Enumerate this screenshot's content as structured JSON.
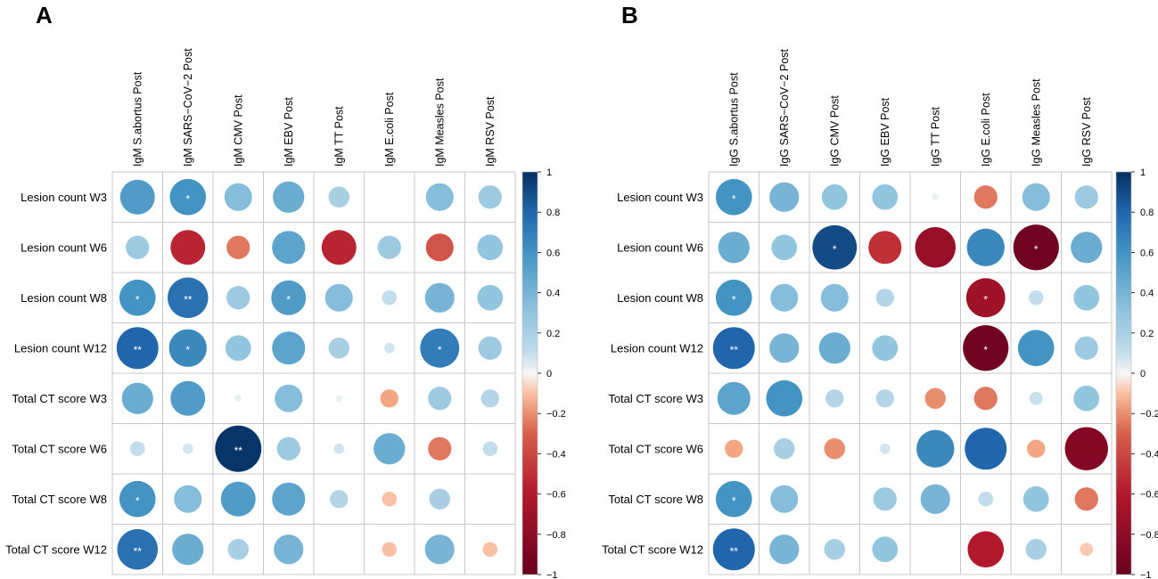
{
  "chart_data": [
    {
      "type": "heatmap",
      "panel_label": "A",
      "columns": [
        "IgM S.abortus Post",
        "IgM SARS−CoV−2 Post",
        "IgM CMV Post",
        "IgM EBV Post",
        "IgM TT Post",
        "IgM E.coli Post",
        "IgM Measles Post",
        "IgM RSV Post"
      ],
      "rows": [
        "Lesion count W3",
        "Lesion count W6",
        "Lesion count W8",
        "Lesion count W12",
        "Total CT score W3",
        "Total CT score W6",
        "Total CT score W8",
        "Total CT score W12"
      ],
      "values": [
        [
          0.55,
          0.6,
          0.35,
          0.45,
          0.2,
          0.0,
          0.35,
          0.25
        ],
        [
          0.25,
          -0.55,
          -0.25,
          0.5,
          -0.55,
          0.25,
          -0.35,
          0.3
        ],
        [
          0.6,
          0.75,
          0.25,
          0.55,
          0.35,
          0.1,
          0.4,
          0.3
        ],
        [
          0.8,
          0.65,
          0.3,
          0.5,
          0.2,
          0.05,
          0.7,
          0.25
        ],
        [
          0.45,
          0.55,
          0.02,
          0.35,
          0.02,
          -0.15,
          0.25,
          0.15
        ],
        [
          0.1,
          0.05,
          0.98,
          0.25,
          0.05,
          0.45,
          -0.25,
          0.1
        ],
        [
          0.6,
          0.35,
          0.55,
          0.5,
          0.15,
          -0.1,
          0.2,
          0.0
        ],
        [
          0.75,
          0.45,
          0.2,
          0.4,
          0.0,
          -0.1,
          0.4,
          -0.1
        ]
      ],
      "significance": [
        [
          "",
          "*",
          "",
          "",
          "",
          "",
          "",
          ""
        ],
        [
          "",
          "",
          "",
          "",
          "",
          "",
          "",
          ""
        ],
        [
          "*",
          "**",
          "",
          "*",
          "",
          "",
          "",
          ""
        ],
        [
          "**",
          "*",
          "",
          "",
          "",
          "",
          "*",
          ""
        ],
        [
          "",
          "",
          "",
          "",
          "",
          "",
          "",
          ""
        ],
        [
          "",
          "",
          "**",
          "",
          "",
          "",
          "",
          ""
        ],
        [
          "*",
          "",
          "",
          "",
          "",
          "",
          "",
          ""
        ],
        [
          "**",
          "",
          "",
          "",
          "",
          "",
          "",
          ""
        ]
      ],
      "color_range": [
        -1,
        1
      ],
      "colorbar_ticks": [
        "1",
        "0.8",
        "0.6",
        "0.4",
        "0.2",
        "0",
        "−0.2",
        "−0.4",
        "−0.6",
        "−0.8",
        "−1"
      ]
    },
    {
      "type": "heatmap",
      "panel_label": "B",
      "columns": [
        "IgG S.abortus Post",
        "IgG SARS−CoV−2 Post",
        "IgG CMV Post",
        "IgG EBV Post",
        "IgG TT Post",
        "IgG E.coli Post",
        "IgG Measles Post",
        "IgG RSV Post"
      ],
      "rows": [
        "Lesion count W3",
        "Lesion count W6",
        "Lesion count W8",
        "Lesion count W12",
        "Total CT score W3",
        "Total CT score W6",
        "Total CT score W8",
        "Total CT score W12"
      ],
      "values": [
        [
          0.6,
          0.4,
          0.3,
          0.3,
          0.02,
          -0.25,
          0.35,
          0.25
        ],
        [
          0.45,
          0.3,
          0.9,
          -0.5,
          -0.75,
          0.65,
          -0.95,
          0.45
        ],
        [
          0.6,
          0.35,
          0.35,
          0.15,
          0.0,
          -0.7,
          0.1,
          0.3
        ],
        [
          0.8,
          0.4,
          0.45,
          0.3,
          0.0,
          -0.95,
          0.6,
          0.25
        ],
        [
          0.5,
          0.6,
          0.15,
          0.15,
          -0.2,
          -0.25,
          0.08,
          0.3
        ],
        [
          -0.15,
          0.2,
          -0.2,
          0.05,
          0.65,
          0.8,
          -0.15,
          -0.85
        ],
        [
          0.6,
          0.35,
          0.0,
          0.25,
          0.4,
          0.1,
          0.3,
          -0.25
        ],
        [
          0.8,
          0.4,
          0.2,
          0.3,
          0.0,
          -0.6,
          0.2,
          -0.08
        ]
      ],
      "significance": [
        [
          "*",
          "",
          "",
          "",
          "",
          "",
          "",
          ""
        ],
        [
          "",
          "",
          "*",
          "",
          "",
          "",
          "*",
          ""
        ],
        [
          "*",
          "",
          "",
          "",
          "",
          "*",
          "",
          ""
        ],
        [
          "**",
          "",
          "",
          "",
          "",
          "*",
          "",
          ""
        ],
        [
          "",
          "",
          "",
          "",
          "",
          "",
          "",
          ""
        ],
        [
          "",
          "",
          "",
          "",
          "",
          "",
          "",
          ""
        ],
        [
          "*",
          "",
          "",
          "",
          "",
          "",
          "",
          ""
        ],
        [
          "**",
          "",
          "",
          "",
          "",
          "",
          "",
          ""
        ]
      ],
      "color_range": [
        -1,
        1
      ],
      "colorbar_ticks": [
        "1",
        "0.8",
        "0.6",
        "0.4",
        "0.2",
        "0",
        "−0.2",
        "−0.4",
        "−0.6",
        "−0.8",
        "−1"
      ]
    }
  ]
}
